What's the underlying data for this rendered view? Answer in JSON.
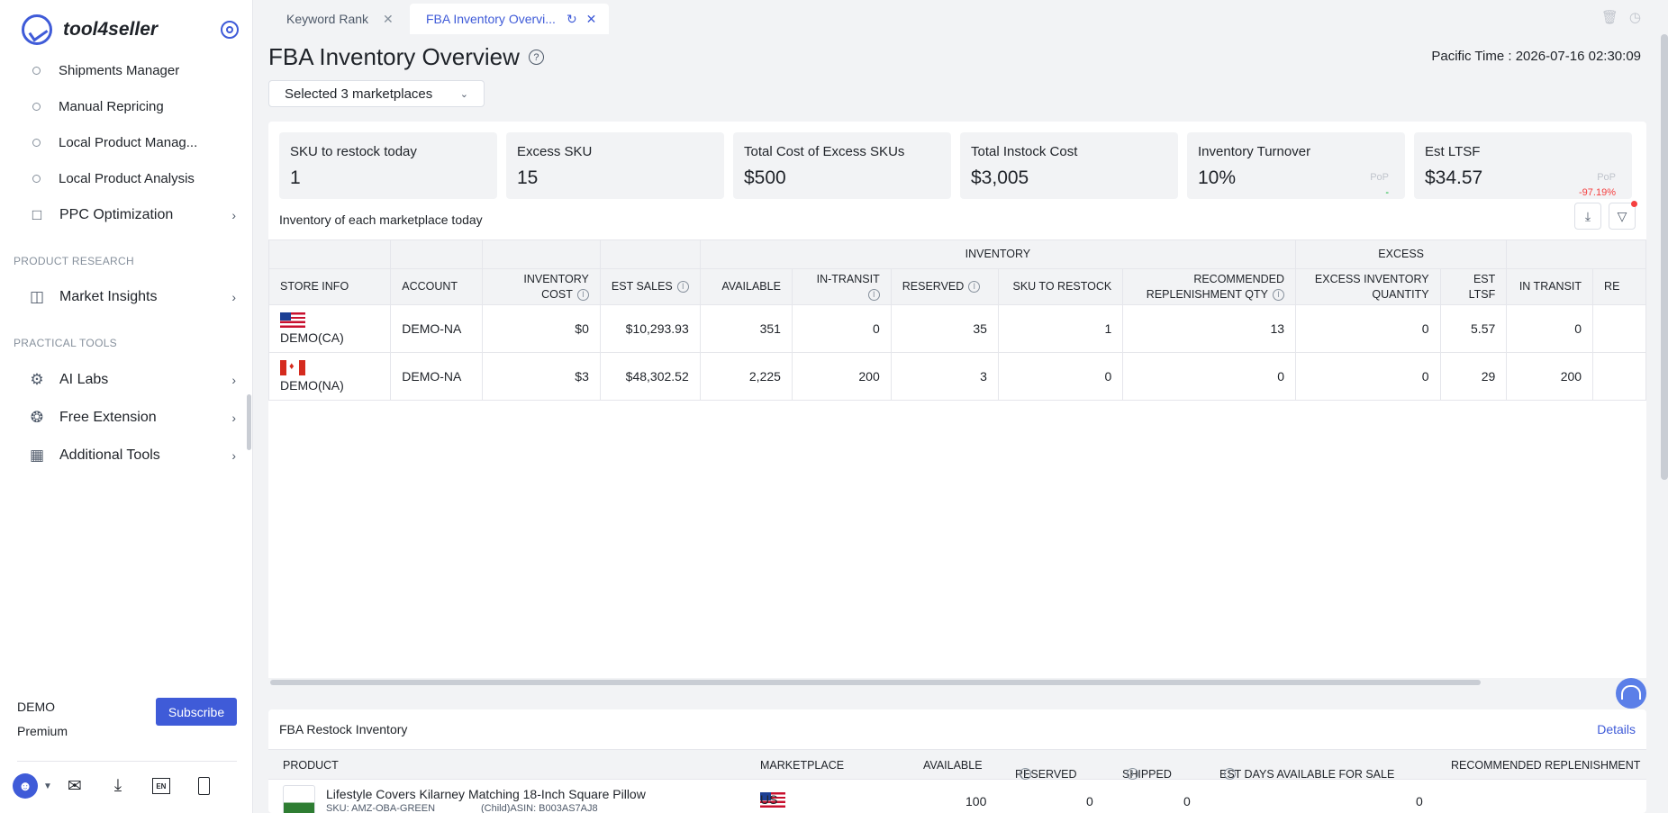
{
  "app": {
    "logo_text": "tool4seller"
  },
  "sidebar": {
    "sub_items": [
      "Shipments Manager",
      "Manual Repricing",
      "Local Product Manag...",
      "Local Product Analysis"
    ],
    "ppc": "PPC Optimization",
    "section_research": "PRODUCT RESEARCH",
    "market_insights": "Market Insights",
    "section_tools": "PRACTICAL TOOLS",
    "ai_labs": "AI Labs",
    "free_extension": "Free Extension",
    "additional_tools": "Additional Tools",
    "account_name": "DEMO",
    "account_plan": "Premium",
    "subscribe": "Subscribe",
    "en_label": "EN"
  },
  "tabs": [
    {
      "label": "Keyword Rank"
    },
    {
      "label": "FBA Inventory Overvi..."
    }
  ],
  "header": {
    "title": "FBA Inventory Overview",
    "pacific_time": "Pacific Time :  2026-07-16 02:30:09",
    "marketplace_select": "Selected 3 marketplaces"
  },
  "cards": [
    {
      "label": "SKU to restock today",
      "value": "1"
    },
    {
      "label": "Excess SKU",
      "value": "15"
    },
    {
      "label": "Total Cost of Excess SKUs",
      "value": "$500"
    },
    {
      "label": "Total Instock Cost",
      "value": "$3,005"
    },
    {
      "label": "Inventory Turnover",
      "value": "10%",
      "pop_label": "PoP",
      "pop_value": "-"
    },
    {
      "label": "Est LTSF",
      "value": "$34.57",
      "pop_label": "PoP",
      "pop_value": "-97.19%"
    }
  ],
  "inventory_table": {
    "subtitle": "Inventory of each marketplace today",
    "groups": {
      "inventory": "INVENTORY",
      "excess": "EXCESS"
    },
    "headers": {
      "store_info": "STORE INFO",
      "account": "ACCOUNT",
      "inventory_cost": "INVENTORY COST",
      "est_sales": "EST SALES",
      "available": "AVAILABLE",
      "in_transit": "IN-TRANSIT",
      "reserved": "RESERVED",
      "sku_to_restock": "SKU TO RESTOCK",
      "recommended_qty": "RECOMMENDED REPLENISHMENT QTY",
      "excess_qty": "EXCESS INVENTORY QUANTITY",
      "est_ltsf": "EST LTSF",
      "in_transit2": "IN TRANSIT",
      "re": "RE"
    },
    "rows": [
      {
        "store": "DEMO(CA)",
        "account": "DEMO-NA",
        "inventory_cost": "$0",
        "est_sales": "$10,293.93",
        "available": "351",
        "in_transit": "0",
        "reserved": "35",
        "sku_to_restock": "1",
        "recommended_qty": "13",
        "excess_qty": "0",
        "est_ltsf": "5.57",
        "in_transit2": "0"
      },
      {
        "store": "DEMO(NA)",
        "account": "DEMO-NA",
        "inventory_cost": "$3",
        "est_sales": "$48,302.52",
        "available": "2,225",
        "in_transit": "200",
        "reserved": "3",
        "sku_to_restock": "0",
        "recommended_qty": "0",
        "excess_qty": "0",
        "est_ltsf": "29",
        "in_transit2": "200"
      }
    ]
  },
  "restock": {
    "title": "FBA Restock Inventory",
    "details": "Details",
    "headers": {
      "product": "PRODUCT",
      "marketplace": "MARKETPLACE",
      "available": "AVAILABLE",
      "reserved": "RESERVED",
      "shipped": "SHIPPED",
      "est_days": "EST DAYS AVAILABLE FOR SALE",
      "recommended": "RECOMMENDED REPLENISHMENT"
    },
    "row": {
      "product": "Lifestyle Covers Kilarney Matching 18-Inch Square Pillow",
      "sku": "SKU: AMZ-OBA-GREEN",
      "asin": "(Child)ASIN: B003AS7AJ8",
      "marketplace": "US",
      "available": "100",
      "reserved": "0",
      "shipped": "0",
      "est_days": "0"
    }
  }
}
